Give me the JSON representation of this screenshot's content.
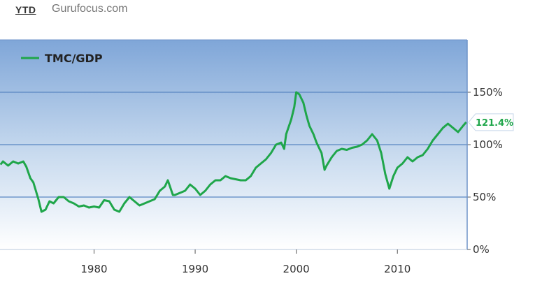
{
  "header": {
    "ytd_label": "YTD",
    "brand_label": "Gurufocus.com"
  },
  "colors": {
    "line": "#1fa64a",
    "gridline": "#5a86c2",
    "bg_top": "#7fa6d8",
    "bg_bottom": "#ffffff"
  },
  "chart_data": {
    "type": "line",
    "title": "",
    "xlabel": "",
    "ylabel": "",
    "xlim": [
      1970.7,
      2016.9
    ],
    "ylim": [
      0,
      200
    ],
    "grid": true,
    "legend_position": "top-left",
    "x_ticks": [
      {
        "value": 1980,
        "label": "1980"
      },
      {
        "value": 1990,
        "label": "1990"
      },
      {
        "value": 2000,
        "label": "2000"
      },
      {
        "value": 2010,
        "label": "2010"
      }
    ],
    "y_ticks": [
      {
        "value": 0,
        "label": "0%"
      },
      {
        "value": 50,
        "label": "50%"
      },
      {
        "value": 100,
        "label": "100%"
      },
      {
        "value": 150,
        "label": "150%"
      }
    ],
    "last_value_label": "121.4%",
    "series": [
      {
        "name": "TMC/GDP",
        "points": [
          [
            1970.75,
            81
          ],
          [
            1971.0,
            84
          ],
          [
            1971.5,
            80
          ],
          [
            1972.0,
            84
          ],
          [
            1972.5,
            82
          ],
          [
            1973.0,
            84
          ],
          [
            1973.3,
            79
          ],
          [
            1973.7,
            68
          ],
          [
            1974.0,
            64
          ],
          [
            1974.5,
            48
          ],
          [
            1974.8,
            36
          ],
          [
            1975.2,
            38
          ],
          [
            1975.6,
            46
          ],
          [
            1976.0,
            44
          ],
          [
            1976.5,
            50
          ],
          [
            1977.0,
            50
          ],
          [
            1977.5,
            46
          ],
          [
            1978.0,
            44
          ],
          [
            1978.5,
            41
          ],
          [
            1979.0,
            42
          ],
          [
            1979.5,
            40
          ],
          [
            1980.0,
            41
          ],
          [
            1980.5,
            40
          ],
          [
            1981.0,
            47
          ],
          [
            1981.5,
            46
          ],
          [
            1982.0,
            38
          ],
          [
            1982.5,
            36
          ],
          [
            1983.0,
            44
          ],
          [
            1983.5,
            50
          ],
          [
            1984.0,
            46
          ],
          [
            1984.5,
            42
          ],
          [
            1985.0,
            44
          ],
          [
            1985.5,
            46
          ],
          [
            1986.0,
            48
          ],
          [
            1986.5,
            56
          ],
          [
            1987.0,
            60
          ],
          [
            1987.3,
            66
          ],
          [
            1987.8,
            52
          ],
          [
            1988.0,
            52
          ],
          [
            1988.5,
            54
          ],
          [
            1989.0,
            56
          ],
          [
            1989.5,
            62
          ],
          [
            1990.0,
            58
          ],
          [
            1990.5,
            52
          ],
          [
            1991.0,
            56
          ],
          [
            1991.5,
            62
          ],
          [
            1992.0,
            66
          ],
          [
            1992.5,
            66
          ],
          [
            1993.0,
            70
          ],
          [
            1993.5,
            68
          ],
          [
            1994.0,
            67
          ],
          [
            1994.5,
            66
          ],
          [
            1995.0,
            66
          ],
          [
            1995.5,
            70
          ],
          [
            1996.0,
            78
          ],
          [
            1996.5,
            82
          ],
          [
            1997.0,
            86
          ],
          [
            1997.5,
            92
          ],
          [
            1998.0,
            100
          ],
          [
            1998.5,
            102
          ],
          [
            1998.8,
            96
          ],
          [
            1999.0,
            110
          ],
          [
            1999.5,
            124
          ],
          [
            1999.8,
            136
          ],
          [
            2000.0,
            150
          ],
          [
            2000.3,
            148
          ],
          [
            2000.7,
            140
          ],
          [
            2001.0,
            128
          ],
          [
            2001.3,
            118
          ],
          [
            2001.7,
            110
          ],
          [
            2002.0,
            102
          ],
          [
            2002.5,
            92
          ],
          [
            2002.8,
            76
          ],
          [
            2003.0,
            80
          ],
          [
            2003.5,
            88
          ],
          [
            2004.0,
            94
          ],
          [
            2004.5,
            96
          ],
          [
            2005.0,
            95
          ],
          [
            2005.5,
            97
          ],
          [
            2006.0,
            98
          ],
          [
            2006.5,
            100
          ],
          [
            2007.0,
            104
          ],
          [
            2007.5,
            110
          ],
          [
            2008.0,
            104
          ],
          [
            2008.4,
            92
          ],
          [
            2008.8,
            72
          ],
          [
            2009.2,
            58
          ],
          [
            2009.6,
            70
          ],
          [
            2010.0,
            78
          ],
          [
            2010.5,
            82
          ],
          [
            2011.0,
            88
          ],
          [
            2011.5,
            84
          ],
          [
            2012.0,
            88
          ],
          [
            2012.5,
            90
          ],
          [
            2013.0,
            96
          ],
          [
            2013.5,
            104
          ],
          [
            2014.0,
            110
          ],
          [
            2014.5,
            116
          ],
          [
            2015.0,
            120
          ],
          [
            2015.5,
            116
          ],
          [
            2016.0,
            112
          ],
          [
            2016.5,
            118
          ],
          [
            2016.8,
            121.4
          ]
        ]
      }
    ]
  }
}
